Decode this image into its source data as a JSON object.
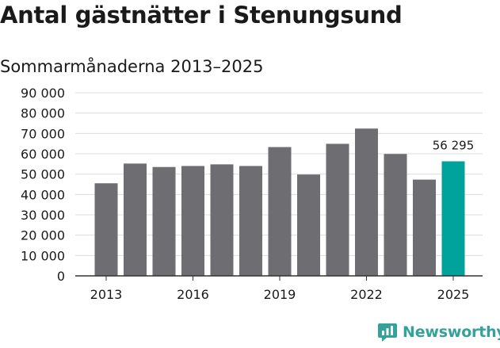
{
  "header": {
    "title": "Antal gästnätter i Stenungsund",
    "subtitle": "Sommarmånaderna 2013–2025"
  },
  "colors": {
    "bar": "#6e6d71",
    "highlight": "#00a39b",
    "grid": "#dcdcdc",
    "text": "#1a1a1a",
    "brand": "#34a29a"
  },
  "brand": {
    "name": "Newsworthy",
    "icon": "newsworthy-logo-icon"
  },
  "chart_data": {
    "type": "bar",
    "categories": [
      "2013",
      "2014",
      "2015",
      "2016",
      "2017",
      "2018",
      "2019",
      "2020",
      "2021",
      "2022",
      "2023",
      "2024",
      "2025"
    ],
    "values": [
      45500,
      55200,
      53500,
      54000,
      54800,
      54000,
      63300,
      49800,
      64900,
      72400,
      59900,
      47300,
      56295
    ],
    "highlight_index": 12,
    "annotations": [
      {
        "category": "2025",
        "text": "56 295"
      }
    ],
    "x_tick_labels": [
      "2013",
      "2016",
      "2019",
      "2022",
      "2025"
    ],
    "y_tick_labels": [
      "0",
      "10 000",
      "20 000",
      "30 000",
      "40 000",
      "50 000",
      "60 000",
      "70 000",
      "80 000",
      "90 000"
    ],
    "y_ticks": [
      0,
      10000,
      20000,
      30000,
      40000,
      50000,
      60000,
      70000,
      80000,
      90000
    ],
    "ylim": [
      0,
      90000
    ],
    "grid": true,
    "legend": "none"
  }
}
